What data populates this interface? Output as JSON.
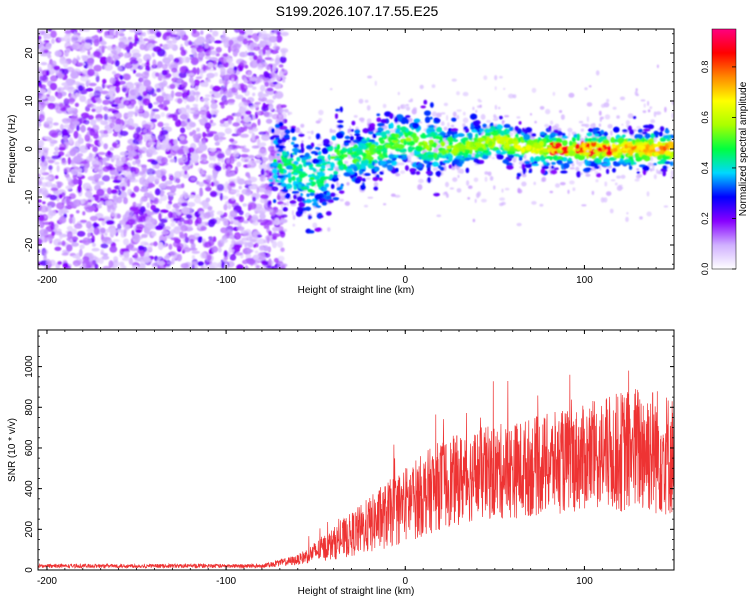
{
  "title": "S199.2026.107.17.55.E25",
  "chart_data": [
    {
      "type": "heatmap",
      "name": "spectrogram",
      "xlabel": "Height of straight line (km)",
      "ylabel": "Frequency (Hz)",
      "xlim": [
        -205,
        150
      ],
      "ylim": [
        -25,
        25
      ],
      "xticks": [
        -200,
        -100,
        0,
        100
      ],
      "yticks": [
        -20,
        -10,
        0,
        10,
        20
      ],
      "colorbar": {
        "label": "Normalized spectral amplitude",
        "range": [
          0,
          0.95
        ],
        "ticks": [
          "0.0",
          "0.2",
          "0.4",
          "0.6",
          "0.8"
        ],
        "tick_values": [
          0,
          0.2,
          0.4,
          0.6,
          0.8
        ],
        "colors": [
          "#ffffff",
          "#d0b0ff",
          "#8800ff",
          "#0000ff",
          "#00d8ff",
          "#00ff40",
          "#aaff00",
          "#ffff00",
          "#ff8800",
          "#ff0000",
          "#ff0080"
        ]
      },
      "features": {
        "noise_region_x": [
          -205,
          -75
        ],
        "signal_ridge": [
          {
            "x": -75,
            "f": -2
          },
          {
            "x": -60,
            "f": -5
          },
          {
            "x": -50,
            "f": -7
          },
          {
            "x": -40,
            "f": -2
          },
          {
            "x": -20,
            "f": -1
          },
          {
            "x": 0,
            "f": 2
          },
          {
            "x": 10,
            "f": 1
          },
          {
            "x": 30,
            "f": 0
          },
          {
            "x": 50,
            "f": 2
          },
          {
            "x": 70,
            "f": 0
          },
          {
            "x": 100,
            "f": 0
          },
          {
            "x": 150,
            "f": 0
          }
        ]
      }
    },
    {
      "type": "line",
      "name": "snr",
      "xlabel": "Height of straight line (km)",
      "ylabel": "SNR (10 * v/v)",
      "xlim": [
        -205,
        150
      ],
      "ylim": [
        0,
        1180
      ],
      "xticks": [
        -200,
        -100,
        0,
        100
      ],
      "yticks": [
        0,
        200,
        400,
        600,
        800,
        1000
      ],
      "color": "#ee3333",
      "envelope": [
        {
          "x": -205,
          "mean": 20,
          "spread": 10
        },
        {
          "x": -80,
          "mean": 20,
          "spread": 10
        },
        {
          "x": -60,
          "mean": 50,
          "spread": 25
        },
        {
          "x": -40,
          "mean": 130,
          "spread": 80
        },
        {
          "x": -20,
          "mean": 220,
          "spread": 140
        },
        {
          "x": 0,
          "mean": 320,
          "spread": 190
        },
        {
          "x": 20,
          "mean": 420,
          "spread": 220
        },
        {
          "x": 40,
          "mean": 470,
          "spread": 230
        },
        {
          "x": 60,
          "mean": 490,
          "spread": 240
        },
        {
          "x": 80,
          "mean": 520,
          "spread": 250
        },
        {
          "x": 100,
          "mean": 550,
          "spread": 260
        },
        {
          "x": 120,
          "mean": 580,
          "spread": 300
        },
        {
          "x": 135,
          "mean": 600,
          "spread": 330
        },
        {
          "x": 150,
          "mean": 560,
          "spread": 300
        }
      ]
    }
  ]
}
